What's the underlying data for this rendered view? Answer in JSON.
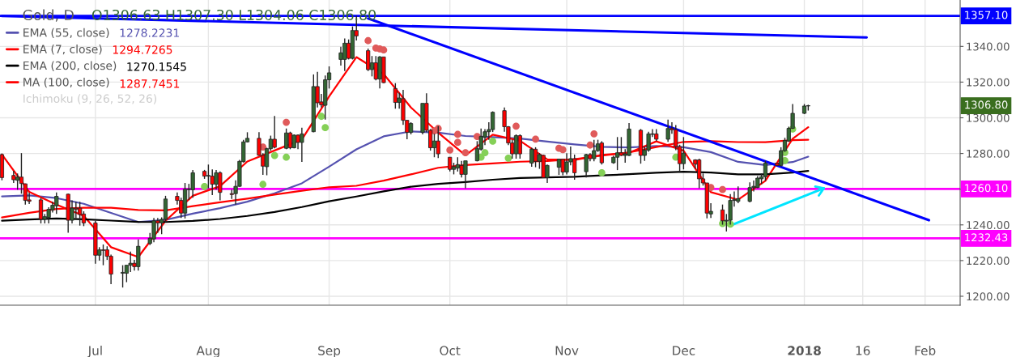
{
  "chart_data": {
    "type": "candlestick",
    "title": "Gold, D",
    "subtitle": "O1306.63 H1307.30 L1304.06 C1306.80",
    "x": [
      "2017-06-09",
      "2017-06-12",
      "2017-06-13",
      "2017-06-14",
      "2017-06-15",
      "2017-06-16",
      "2017-06-19",
      "2017-06-20",
      "2017-06-21",
      "2017-06-22",
      "2017-06-23",
      "2017-06-26",
      "2017-06-27",
      "2017-06-28",
      "2017-06-29",
      "2017-06-30",
      "2017-07-03",
      "2017-07-04",
      "2017-07-05",
      "2017-07-06",
      "2017-07-07",
      "2017-07-10",
      "2017-07-11",
      "2017-07-12",
      "2017-07-13",
      "2017-07-14",
      "2017-07-17",
      "2017-07-18",
      "2017-07-19",
      "2017-07-20",
      "2017-07-21",
      "2017-07-24",
      "2017-07-25",
      "2017-07-26",
      "2017-07-27",
      "2017-07-28",
      "2017-07-31",
      "2017-08-01",
      "2017-08-02",
      "2017-08-03",
      "2017-08-04",
      "2017-08-07",
      "2017-08-08",
      "2017-08-09",
      "2017-08-10",
      "2017-08-11",
      "2017-08-14",
      "2017-08-15",
      "2017-08-16",
      "2017-08-17",
      "2017-08-18",
      "2017-08-21",
      "2017-08-22",
      "2017-08-23",
      "2017-08-24",
      "2017-08-25",
      "2017-08-28",
      "2017-08-29",
      "2017-08-30",
      "2017-08-31",
      "2017-09-01",
      "2017-09-04",
      "2017-09-05",
      "2017-09-06",
      "2017-09-07",
      "2017-09-08",
      "2017-09-11",
      "2017-09-12",
      "2017-09-13",
      "2017-09-14",
      "2017-09-15",
      "2017-09-18",
      "2017-09-19",
      "2017-09-20",
      "2017-09-21",
      "2017-09-22",
      "2017-09-25",
      "2017-09-26",
      "2017-09-27",
      "2017-09-28",
      "2017-09-29",
      "2017-10-02",
      "2017-10-03",
      "2017-10-04",
      "2017-10-05",
      "2017-10-06",
      "2017-10-09",
      "2017-10-10",
      "2017-10-11",
      "2017-10-12",
      "2017-10-13",
      "2017-10-16",
      "2017-10-17",
      "2017-10-18",
      "2017-10-19",
      "2017-10-20",
      "2017-10-23",
      "2017-10-24",
      "2017-10-25",
      "2017-10-26",
      "2017-10-27",
      "2017-10-30",
      "2017-10-31",
      "2017-11-01",
      "2017-11-02",
      "2017-11-03",
      "2017-11-06",
      "2017-11-07",
      "2017-11-08",
      "2017-11-09",
      "2017-11-10",
      "2017-11-13",
      "2017-11-14",
      "2017-11-15",
      "2017-11-16",
      "2017-11-17",
      "2017-11-20",
      "2017-11-21",
      "2017-11-22",
      "2017-11-23",
      "2017-11-24",
      "2017-11-27",
      "2017-11-28",
      "2017-11-29",
      "2017-11-30",
      "2017-12-01",
      "2017-12-04",
      "2017-12-05",
      "2017-12-06",
      "2017-12-07",
      "2017-12-08",
      "2017-12-11",
      "2017-12-12",
      "2017-12-13",
      "2017-12-14",
      "2017-12-15",
      "2017-12-18",
      "2017-12-19",
      "2017-12-20",
      "2017-12-21",
      "2017-12-22",
      "2017-12-25",
      "2017-12-26",
      "2017-12-27",
      "2017-12-28",
      "2017-12-29",
      "2018-01-01",
      "2018-01-02"
    ],
    "ohlc": [
      [
        1279.4,
        1280,
        1265,
        1266.5
      ],
      [
        1267.7,
        1270.3,
        1263.5,
        1265.3
      ],
      [
        1265,
        1268.8,
        1259.7,
        1266.8
      ],
      [
        1266.8,
        1280.2,
        1257.5,
        1263.2
      ],
      [
        1263,
        1263.2,
        1251.4,
        1253.7
      ],
      [
        1254,
        1258,
        1251.7,
        1253.2
      ],
      [
        1254,
        1255.2,
        1240.8,
        1243.1
      ],
      [
        1243.1,
        1246.1,
        1240.8,
        1244.6
      ],
      [
        1244.2,
        1249.9,
        1240.8,
        1248.7
      ],
      [
        1248.4,
        1253,
        1246.9,
        1251
      ],
      [
        1250.7,
        1258.2,
        1246.1,
        1256
      ],
      [
        1257.2,
        1257.5,
        1235.6,
        1242.6
      ],
      [
        1242.6,
        1253.7,
        1240.8,
        1249.4
      ],
      [
        1249.4,
        1252.9,
        1243.8,
        1248.8
      ],
      [
        1249.4,
        1252.9,
        1239.6,
        1245.8
      ],
      [
        1246.1,
        1247.6,
        1239.3,
        1241.1
      ],
      [
        1241.1,
        1242.3,
        1218.2,
        1223
      ],
      [
        1223,
        1227.5,
        1220,
        1226
      ],
      [
        1226,
        1229,
        1217.4,
        1225.7
      ],
      [
        1226,
        1228,
        1220.4,
        1222.4
      ],
      [
        1222.4,
        1223.4,
        1206.8,
        1212.4
      ],
      [
        1212.9,
        1217.4,
        1204.9,
        1213.4
      ],
      [
        1212.9,
        1217.4,
        1207.9,
        1217.4
      ],
      [
        1217.4,
        1225,
        1213.6,
        1218.5
      ],
      [
        1218.5,
        1220.4,
        1214.4,
        1216.6
      ],
      [
        1216.6,
        1231.8,
        1214.4,
        1228
      ],
      [
        1229.6,
        1235.5,
        1228.7,
        1232.5
      ],
      [
        1232.1,
        1243.9,
        1230.3,
        1242.3
      ],
      [
        1242.3,
        1243.9,
        1235.6,
        1241.1
      ],
      [
        1241.1,
        1244.2,
        1234.8,
        1243.1
      ],
      [
        1243.1,
        1256.3,
        1241.6,
        1254.5
      ],
      [
        1256,
        1258.2,
        1251.4,
        1253.7
      ],
      [
        1253.7,
        1255.2,
        1243.9,
        1246.6
      ],
      [
        1246.6,
        1263.5,
        1243.6,
        1260
      ],
      [
        1259.8,
        1263,
        1254,
        1260
      ],
      [
        1259.7,
        1270.8,
        1255.2,
        1269.2
      ],
      [
        1270,
        1270.8,
        1265.8,
        1267.3
      ],
      [
        1267.3,
        1273.8,
        1260.5,
        1267.7
      ],
      [
        1267.3,
        1271.1,
        1256.7,
        1262.8
      ],
      [
        1262.8,
        1270.8,
        1259.8,
        1269.2
      ],
      [
        1269.2,
        1269.9,
        1253.7,
        1258.2
      ],
      [
        1257.5,
        1259.8,
        1254.5,
        1257
      ],
      [
        1257.5,
        1265,
        1251.4,
        1261.6
      ],
      [
        1261.6,
        1276.4,
        1261.3,
        1275.6
      ],
      [
        1275.4,
        1287.7,
        1274.9,
        1286.5
      ],
      [
        1286.5,
        1291.9,
        1286.2,
        1288.5
      ],
      [
        1288.5,
        1291.9,
        1278.7,
        1279
      ],
      [
        1279,
        1280.2,
        1268,
        1272.9
      ],
      [
        1272.6,
        1283.2,
        1267.8,
        1282.7
      ],
      [
        1282.7,
        1290,
        1281.6,
        1288
      ],
      [
        1288,
        1301,
        1282.9,
        1283.5
      ],
      [
        1282.9,
        1294,
        1282.4,
        1291.5
      ],
      [
        1291.5,
        1292.2,
        1282.4,
        1283.2
      ],
      [
        1283.2,
        1290.7,
        1282.9,
        1290.3
      ],
      [
        1290.3,
        1290.7,
        1282.4,
        1286.2
      ],
      [
        1286.2,
        1294.5,
        1275.3,
        1291
      ],
      [
        1292.2,
        1324.3,
        1291.9,
        1317.5
      ],
      [
        1317.5,
        1325.8,
        1305.8,
        1308.4
      ],
      [
        1308.9,
        1313.4,
        1305.8,
        1307.3
      ],
      [
        1307,
        1323.7,
        1299,
        1321.3
      ],
      [
        1321.3,
        1328.8,
        1316.4,
        1325.2
      ],
      [
        1332.7,
        1339.8,
        1329.3,
        1336.4
      ],
      [
        1332.7,
        1344.4,
        1326.2,
        1341.8
      ],
      [
        1341.8,
        1343.9,
        1332.7,
        1333.3
      ],
      [
        1333.3,
        1351.2,
        1332.7,
        1348.9
      ],
      [
        1348.9,
        1357.2,
        1343.3,
        1345.9
      ],
      [
        1337.6,
        1338.8,
        1326.2,
        1327
      ],
      [
        1327,
        1334.6,
        1323.2,
        1330.8
      ],
      [
        1330.8,
        1334.6,
        1321,
        1321.7
      ],
      [
        1321.7,
        1334.6,
        1316.4,
        1334.1
      ],
      [
        1334.1,
        1334.1,
        1319.4,
        1319.7
      ],
      [
        1316.4,
        1319.4,
        1305.1,
        1308.6
      ],
      [
        1308.6,
        1314.1,
        1305.1,
        1311.1
      ],
      [
        1310.7,
        1315.7,
        1296,
        1298.6
      ],
      [
        1298.6,
        1298.6,
        1288,
        1291.8
      ],
      [
        1291.8,
        1297.5,
        1290.7,
        1296.8
      ],
      [
        1291.8,
        1308.1,
        1290.7,
        1308.1
      ],
      [
        1308.1,
        1313.7,
        1292,
        1293
      ],
      [
        1293,
        1293.7,
        1281.6,
        1283.2
      ],
      [
        1283.2,
        1291,
        1277.9,
        1287
      ],
      [
        1287,
        1295.3,
        1277.4,
        1279.8
      ],
      [
        1277.9,
        1277.9,
        1269.9,
        1271.1
      ],
      [
        1271.1,
        1274.8,
        1268.3,
        1272.6
      ],
      [
        1271.8,
        1277.9,
        1269.9,
        1273.8
      ],
      [
        1273.3,
        1275.9,
        1266.5,
        1268.3
      ],
      [
        1268.3,
        1275.9,
        1260.5,
        1275.9
      ],
      [
        1275.9,
        1286.9,
        1275.6,
        1282.7
      ],
      [
        1282.4,
        1294,
        1281.6,
        1289.5
      ],
      [
        1289.2,
        1293.7,
        1284.7,
        1292.2
      ],
      [
        1292.2,
        1297.5,
        1287.7,
        1293.4
      ],
      [
        1293.4,
        1303.6,
        1292,
        1303.1
      ],
      [
        1304,
        1305.8,
        1292.2,
        1295
      ],
      [
        1295,
        1295.3,
        1284.7,
        1285.9
      ],
      [
        1285.9,
        1287.7,
        1277.1,
        1279.8
      ],
      [
        1279.8,
        1290.7,
        1277.1,
        1290
      ],
      [
        1290,
        1290.7,
        1277.1,
        1279.8
      ],
      [
        1274.6,
        1283.2,
        1272.6,
        1282.4
      ],
      [
        1282.4,
        1283.5,
        1272.3,
        1275.6
      ],
      [
        1275.6,
        1280.2,
        1271.4,
        1279.4
      ],
      [
        1279,
        1279.4,
        1266.2,
        1266.5
      ],
      [
        1266.5,
        1273.8,
        1263.5,
        1273.3
      ],
      [
        1272.3,
        1277.1,
        1268,
        1276.8
      ],
      [
        1276.8,
        1277.1,
        1267.8,
        1269.6
      ],
      [
        1269.6,
        1280.2,
        1268.3,
        1275.3
      ],
      [
        1275.3,
        1283.9,
        1273.3,
        1277.1
      ],
      [
        1277.1,
        1279.4,
        1265.3,
        1269.2
      ],
      [
        1269.8,
        1279.8,
        1266.5,
        1279.4
      ],
      [
        1279.4,
        1280.2,
        1275.6,
        1277.1
      ],
      [
        1277.1,
        1287.7,
        1275.6,
        1281.6
      ],
      [
        1281.6,
        1287.7,
        1280.9,
        1285.4
      ],
      [
        1285.9,
        1286.9,
        1273.8,
        1274.8
      ],
      [
        1274.8,
        1278.7,
        1274.3,
        1277.9
      ],
      [
        1277.9,
        1289.2,
        1270.7,
        1280.4
      ],
      [
        1280.4,
        1289.2,
        1278.6,
        1278.9
      ],
      [
        1278.9,
        1282.4,
        1274.8,
        1279.8
      ],
      [
        1278.9,
        1297.1,
        1278.6,
        1293.7
      ],
      [
        1293,
        1293.7,
        1274.3,
        1278.9
      ],
      [
        1278.9,
        1283.9,
        1275.9,
        1281.9
      ],
      [
        1281.9,
        1292.2,
        1280.9,
        1291
      ],
      [
        1290.7,
        1293.7,
        1289.2,
        1291
      ],
      [
        1291,
        1293.7,
        1287,
        1288
      ],
      [
        1288,
        1299,
        1286.5,
        1294
      ],
      [
        1294,
        1297.5,
        1291,
        1293.3
      ],
      [
        1293.3,
        1295.9,
        1281.9,
        1283.9
      ],
      [
        1283.9,
        1284.9,
        1270.3,
        1274.3
      ],
      [
        1274.3,
        1289.2,
        1271.1,
        1280.2
      ],
      [
        1276.4,
        1276.8,
        1271.4,
        1274
      ],
      [
        1276.4,
        1277.1,
        1260.5,
        1265.8
      ],
      [
        1265.8,
        1268.8,
        1262,
        1263.5
      ],
      [
        1263.5,
        1263.5,
        1243.6,
        1246.6
      ],
      [
        1246.1,
        1252.2,
        1243.9,
        1247.6
      ],
      [
        1248.4,
        1251.4,
        1240.1,
        1242.3
      ],
      [
        1242.1,
        1246.1,
        1236.3,
        1242.6
      ],
      [
        1242.6,
        1257.2,
        1240.1,
        1253.7
      ],
      [
        1253.7,
        1258.7,
        1250.2,
        1254.1
      ],
      [
        1253.2,
        1261.6,
        1252.2,
        1254.7
      ],
      [
        1253.2,
        1263.8,
        1252.6,
        1260.9
      ],
      [
        1260.9,
        1264.9,
        1258.7,
        1261.6
      ],
      [
        1260.9,
        1267.3,
        1260.5,
        1266.2
      ],
      [
        1265.8,
        1268.8,
        1262.8,
        1267
      ],
      [
        1267,
        1275.9,
        1264.7,
        1274.6
      ],
      [
        1274.6,
        1274.8,
        1272.9,
        1273.3
      ],
      [
        1273.3,
        1283.5,
        1272.6,
        1281.6
      ],
      [
        1281.6,
        1288.8,
        1280.9,
        1287.3
      ],
      [
        1287,
        1295,
        1286.5,
        1294.1
      ],
      [
        1294.1,
        1307.7,
        1293.8,
        1302.5
      ],
      [
        1302.5,
        1307.7,
        1302.1,
        1306.6
      ],
      [
        1306.63,
        1307.3,
        1304.06,
        1306.8
      ]
    ],
    "series": [
      {
        "type": "line",
        "name": "EMA (55, close)",
        "color": "#5552b0",
        "x": [
          "2017-06-09",
          "2017-06-16",
          "2017-06-23",
          "2017-06-30",
          "2017-07-07",
          "2017-07-14",
          "2017-07-21",
          "2017-07-28",
          "2017-08-04",
          "2017-08-11",
          "2017-08-18",
          "2017-08-25",
          "2017-09-01",
          "2017-09-08",
          "2017-09-15",
          "2017-09-22",
          "2017-09-29",
          "2017-10-06",
          "2017-10-13",
          "2017-10-20",
          "2017-10-27",
          "2017-11-03",
          "2017-11-10",
          "2017-11-17",
          "2017-11-24",
          "2017-12-01",
          "2017-12-08",
          "2017-12-15",
          "2017-12-22",
          "2017-12-29",
          "2018-01-02"
        ],
        "values": [
          1256,
          1256.5,
          1255,
          1251.8,
          1246.7,
          1241.6,
          1242.8,
          1246.3,
          1249.4,
          1253,
          1257.7,
          1263.3,
          1272.6,
          1282.3,
          1289.6,
          1292.4,
          1291.7,
          1289.8,
          1289.2,
          1288.4,
          1286.7,
          1285.1,
          1283.7,
          1283.4,
          1284.2,
          1283.5,
          1280.8,
          1275.3,
          1273.5,
          1275.2,
          1278.2
        ]
      },
      {
        "type": "line",
        "name": "EMA (7, close)",
        "color": "#ff0000",
        "x": [
          "2017-06-09",
          "2017-06-16",
          "2017-06-23",
          "2017-06-30",
          "2017-07-07",
          "2017-07-14",
          "2017-07-21",
          "2017-07-28",
          "2017-08-04",
          "2017-08-11",
          "2017-08-18",
          "2017-08-25",
          "2017-09-01",
          "2017-09-08",
          "2017-09-15",
          "2017-09-22",
          "2017-09-29",
          "2017-10-06",
          "2017-10-13",
          "2017-10-20",
          "2017-10-27",
          "2017-11-03",
          "2017-11-10",
          "2017-11-17",
          "2017-11-24",
          "2017-12-01",
          "2017-12-08",
          "2017-12-15",
          "2017-12-22",
          "2017-12-29",
          "2018-01-02"
        ],
        "values": [
          1279.4,
          1258.5,
          1251.4,
          1245,
          1227.5,
          1222,
          1242.3,
          1256.3,
          1261.7,
          1275.5,
          1281.7,
          1287.8,
          1312,
          1334,
          1324.5,
          1305.8,
          1291.7,
          1279,
          1290.5,
          1287.1,
          1276.7,
          1276.4,
          1279.2,
          1280.4,
          1286.8,
          1281.6,
          1258.3,
          1254.1,
          1264.7,
          1288.3,
          1294.7
        ]
      },
      {
        "type": "line",
        "name": "EMA (200, close)",
        "color": "#000000",
        "x": [
          "2017-06-09",
          "2017-06-16",
          "2017-06-23",
          "2017-06-30",
          "2017-07-07",
          "2017-07-14",
          "2017-07-21",
          "2017-07-28",
          "2017-08-04",
          "2017-08-11",
          "2017-08-18",
          "2017-08-25",
          "2017-09-01",
          "2017-09-08",
          "2017-09-15",
          "2017-09-22",
          "2017-09-29",
          "2017-10-06",
          "2017-10-13",
          "2017-10-20",
          "2017-10-27",
          "2017-11-03",
          "2017-11-10",
          "2017-11-17",
          "2017-11-24",
          "2017-12-01",
          "2017-12-08",
          "2017-12-15",
          "2017-12-22",
          "2017-12-29",
          "2018-01-02"
        ],
        "values": [
          1242.3,
          1243,
          1243.6,
          1243.1,
          1242.4,
          1241.7,
          1241.6,
          1242.2,
          1243.3,
          1245,
          1247.2,
          1250,
          1253.2,
          1255.9,
          1258.8,
          1261.4,
          1263,
          1264,
          1265.3,
          1266.3,
          1266.6,
          1266.9,
          1267.7,
          1268.4,
          1269.2,
          1269.8,
          1269.3,
          1268.3,
          1268.3,
          1269.3,
          1270.2
        ]
      },
      {
        "type": "line",
        "name": "MA (100, close)",
        "color": "#ff0000",
        "x": [
          "2017-06-09",
          "2017-06-16",
          "2017-06-23",
          "2017-06-30",
          "2017-07-07",
          "2017-07-14",
          "2017-07-21",
          "2017-07-28",
          "2017-08-04",
          "2017-08-11",
          "2017-08-18",
          "2017-08-25",
          "2017-09-01",
          "2017-09-08",
          "2017-09-15",
          "2017-09-22",
          "2017-09-29",
          "2017-10-06",
          "2017-10-13",
          "2017-10-20",
          "2017-10-27",
          "2017-11-03",
          "2017-11-10",
          "2017-11-17",
          "2017-11-24",
          "2017-12-01",
          "2017-12-08",
          "2017-12-15",
          "2017-12-22",
          "2017-12-29",
          "2018-01-02"
        ],
        "values": [
          1244.2,
          1246.8,
          1248.9,
          1249.6,
          1249.6,
          1248.4,
          1248.1,
          1250.5,
          1252.7,
          1254.7,
          1257,
          1259.1,
          1261.1,
          1261.9,
          1264.8,
          1268.3,
          1272,
          1273.5,
          1274.4,
          1275.4,
          1275.8,
          1276.8,
          1278.8,
          1280.6,
          1283.6,
          1286.5,
          1286.9,
          1286.4,
          1286.3,
          1287.5,
          1287.7
        ]
      },
      {
        "type": "scatter",
        "color": "#e05a5a",
        "x": [
          "2017-08-15",
          "2017-08-21",
          "2017-09-11",
          "2017-09-13",
          "2017-09-14",
          "2017-09-15",
          "2017-09-28",
          "2017-09-29",
          "2017-10-02",
          "2017-10-04",
          "2017-10-04",
          "2017-10-06",
          "2017-10-09",
          "2017-10-19",
          "2017-10-24",
          "2017-10-30",
          "2017-10-31",
          "2017-11-07",
          "2017-11-08",
          "2017-12-08",
          "2017-12-11"
        ],
        "values": [
          1283.6,
          1297.5,
          1343.2,
          1339.1,
          1338.6,
          1338,
          1292.7,
          1294,
          1281.9,
          1290.7,
          1286.2,
          1280.4,
          1289.5,
          1295.3,
          1288,
          1282.9,
          1282.1,
          1284.7,
          1291,
          1260.9,
          1259.8
        ]
      },
      {
        "type": "scatter",
        "color": "#85d057",
        "x": [
          "2017-07-31",
          "2017-08-15",
          "2017-08-18",
          "2017-08-21",
          "2017-08-30",
          "2017-08-31",
          "2017-10-10",
          "2017-10-11",
          "2017-10-13",
          "2017-10-17",
          "2017-11-10",
          "2017-11-29",
          "2017-12-11",
          "2017-12-13",
          "2017-12-27",
          "2017-12-27",
          "2017-12-29"
        ],
        "values": [
          1261.5,
          1262.7,
          1278.9,
          1277.9,
          1300.8,
          1294.5,
          1277.9,
          1280.4,
          1286.9,
          1277.4,
          1269.2,
          1277.9,
          1240.8,
          1240.4,
          1280.6,
          1276,
          1293.7
        ]
      },
      {
        "type": "line",
        "color": "#0000ff",
        "x": [
          "2017-06-09",
          "2018-01-17"
        ],
        "values": [
          1357,
          1345
        ]
      },
      {
        "type": "line",
        "color": "#0000ff",
        "x": [
          "2017-09-11",
          "2018-02-02"
        ],
        "values": [
          1355.7,
          1242.6
        ]
      },
      {
        "type": "line",
        "marker": "none",
        "color": "#00e5ff",
        "x": [
          "2017-12-13",
          "2018-01-06"
        ],
        "values": [
          1239.6,
          1260.5
        ]
      }
    ],
    "legend": "top left",
    "ref_lines": [
      {
        "axis": "y",
        "value": 1357.1,
        "label": "1357.10",
        "color": "#0000ff"
      },
      {
        "axis": "y",
        "value": 1260.1,
        "label": "1260.10",
        "color": "#ff00ff"
      },
      {
        "axis": "y",
        "value": 1232.43,
        "label": "1232.43",
        "color": "#ff00ff"
      }
    ],
    "annotations": [
      "1278.2231",
      "1294.7265",
      "1270.1545",
      "1287.7451",
      "Ichimoku (9, 26, 52, 26)",
      "1306.80"
    ],
    "xlim": [
      "2017-06-09",
      "2018-02-10"
    ],
    "xticks": [
      {
        "value": "2017-07-03",
        "label": "Jul"
      },
      {
        "value": "2017-08-01",
        "label": "Aug"
      },
      {
        "value": "2017-09-01",
        "label": "Sep"
      },
      {
        "value": "2017-10-02",
        "label": "Oct"
      },
      {
        "value": "2017-11-01",
        "label": "Nov"
      },
      {
        "value": "2017-12-01",
        "label": "Dec"
      },
      {
        "value": "2018-01-01",
        "label": "2018"
      },
      {
        "value": "2018-01-16",
        "label": "16"
      },
      {
        "value": "2018-02-01",
        "label": "Feb"
      }
    ],
    "ylim": [
      1195,
      1366
    ],
    "yticks": [
      {
        "value": 1200,
        "label": "1200.00"
      },
      {
        "value": 1220,
        "label": "1220.00"
      },
      {
        "value": 1240,
        "label": "1240.00"
      },
      {
        "value": 1260,
        "label": null
      },
      {
        "value": 1280,
        "label": "1280.00"
      },
      {
        "value": 1300,
        "label": "1300.00"
      },
      {
        "value": 1320,
        "label": "1320.00"
      },
      {
        "value": 1340,
        "label": "1340.00"
      }
    ],
    "grid": true
  }
}
